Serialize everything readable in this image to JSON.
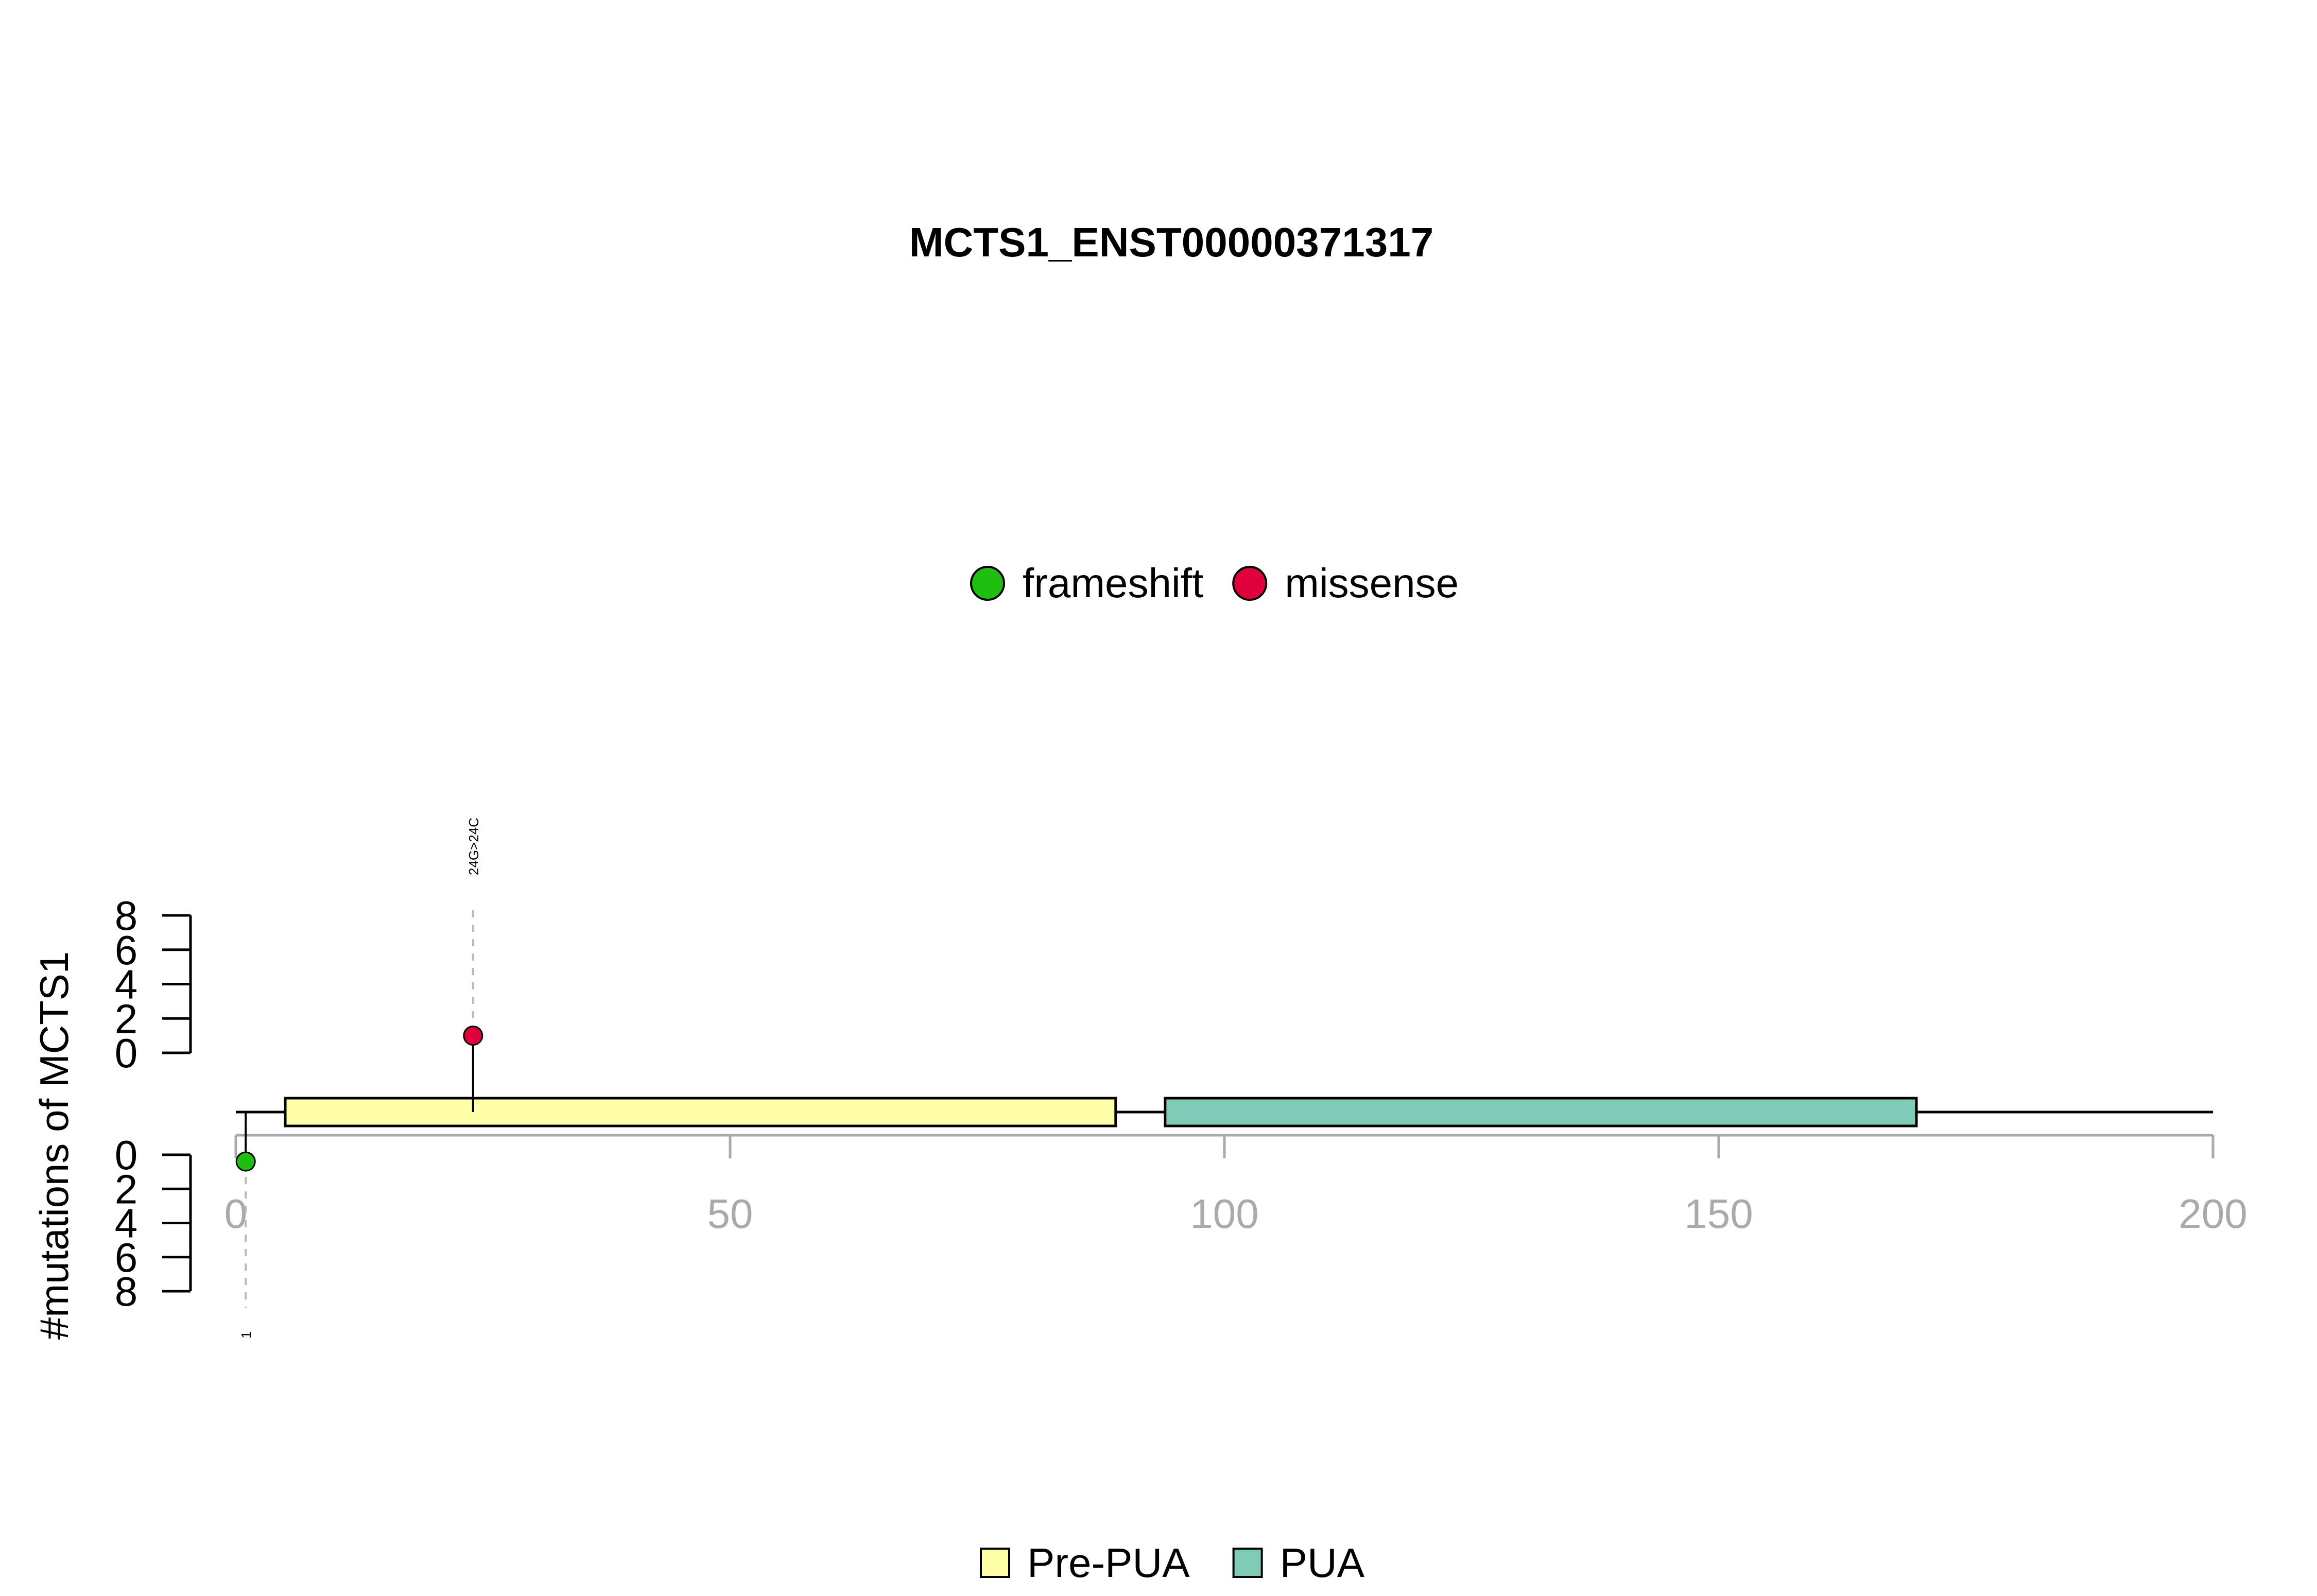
{
  "chart_data": {
    "type": "lollipop",
    "title": "MCTS1_ENST00000371317",
    "ylabel": "#mutations of MCTS1",
    "xlim": [
      0,
      200
    ],
    "x_ticks": [
      0,
      50,
      100,
      150,
      200
    ],
    "upper_y_ticks": [
      0,
      2,
      4,
      6,
      8
    ],
    "lower_y_ticks": [
      0,
      2,
      4,
      6,
      8
    ],
    "protein_length": 200,
    "mutation_legend": [
      {
        "name": "frameshift",
        "color": "#1fbf10"
      },
      {
        "name": "missense",
        "color": "#e0003c"
      }
    ],
    "domain_legend": [
      {
        "name": "Pre-PUA",
        "color": "#ffffa8"
      },
      {
        "name": "PUA",
        "color": "#7fcbb8"
      }
    ],
    "domains": [
      {
        "name": "Pre-PUA",
        "start": 5,
        "end": 89,
        "color": "#ffffa8"
      },
      {
        "name": "PUA",
        "start": 94,
        "end": 170,
        "color": "#7fcbb8"
      }
    ],
    "mutations": [
      {
        "position": 24,
        "count": 1,
        "side": "upper",
        "type": "missense",
        "label": "24G>24C"
      },
      {
        "position": 1,
        "count": 1,
        "side": "lower",
        "type": "frameshift",
        "label": "1"
      }
    ]
  }
}
